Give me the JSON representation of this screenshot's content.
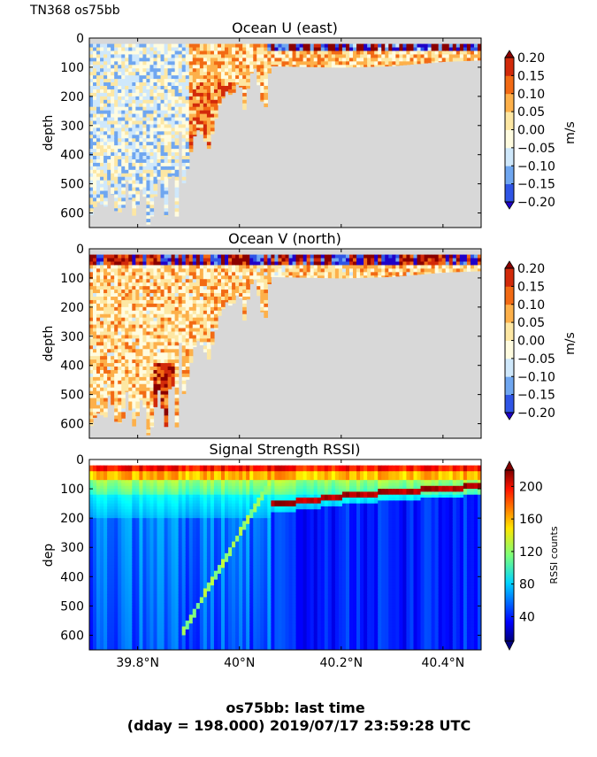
{
  "figure": {
    "corner_label": "TN368 os75bb",
    "footer_line1": "os75bb: last time",
    "footer_line2": "(dday = 198.000) 2019/07/17 23:59:28 UTC"
  },
  "colors": {
    "land_mask": "#d8d8d8",
    "velocity_levels": [
      "#1f00c8",
      "#2f55e6",
      "#6fa6f0",
      "#cfe8fb",
      "#fffce0",
      "#fde7a3",
      "#fdb04a",
      "#f26a14",
      "#d22a0a",
      "#8a0000"
    ],
    "rssi_colormap": "jet"
  },
  "chart_data": [
    {
      "type": "heatmap",
      "title": "Ocean U (east)",
      "ylabel": "depth",
      "xlabel": "",
      "x_unit": "degrees N latitude",
      "xlim": [
        39.705,
        40.475
      ],
      "ylim": [
        650,
        0
      ],
      "yticks": [
        0,
        100,
        200,
        300,
        400,
        500,
        600
      ],
      "xticks": [
        39.8,
        40.0,
        40.2,
        40.4
      ],
      "xtick_labels": [],
      "colorbar": {
        "label": "m/s",
        "levels": [
          -0.2,
          -0.15,
          -0.1,
          -0.05,
          0.0,
          0.05,
          0.1,
          0.15,
          0.2
        ],
        "tick_labels": [
          "−0.20",
          "−0.15",
          "−0.10",
          "−0.05",
          "0.00",
          "0.05",
          "0.10",
          "0.15",
          "0.20"
        ],
        "extend": "both"
      },
      "bottom_depth_profile": [
        [
          39.705,
          620
        ],
        [
          39.72,
          560
        ],
        [
          39.74,
          580
        ],
        [
          39.745,
          470
        ],
        [
          39.755,
          590
        ],
        [
          39.77,
          600
        ],
        [
          39.78,
          470
        ],
        [
          39.79,
          620
        ],
        [
          39.8,
          570
        ],
        [
          39.81,
          490
        ],
        [
          39.82,
          640
        ],
        [
          39.83,
          600
        ],
        [
          39.84,
          470
        ],
        [
          39.85,
          560
        ],
        [
          39.86,
          650
        ],
        [
          39.865,
          310
        ],
        [
          39.872,
          560
        ],
        [
          39.88,
          650
        ],
        [
          39.885,
          180
        ],
        [
          39.89,
          500
        ],
        [
          39.9,
          430
        ],
        [
          39.91,
          340
        ],
        [
          39.92,
          310
        ],
        [
          39.94,
          380
        ],
        [
          39.95,
          300
        ],
        [
          39.96,
          230
        ],
        [
          39.975,
          180
        ],
        [
          39.985,
          200
        ],
        [
          40.0,
          140
        ],
        [
          40.01,
          250
        ],
        [
          40.02,
          130
        ],
        [
          40.03,
          100
        ],
        [
          40.05,
          260
        ],
        [
          40.06,
          95
        ],
        [
          40.2,
          100
        ],
        [
          40.3,
          95
        ],
        [
          40.4,
          80
        ],
        [
          40.475,
          75
        ]
      ],
      "profile_note": "values are depth of deepest valid data per latitude"
    },
    {
      "type": "heatmap",
      "title": "Ocean V (north)",
      "ylabel": "depth",
      "xlabel": "",
      "x_unit": "degrees N latitude",
      "xlim": [
        39.705,
        40.475
      ],
      "ylim": [
        650,
        0
      ],
      "yticks": [
        0,
        100,
        200,
        300,
        400,
        500,
        600
      ],
      "xticks": [
        39.8,
        40.0,
        40.2,
        40.4
      ],
      "xtick_labels": [],
      "colorbar": {
        "label": "m/s",
        "levels": [
          -0.2,
          -0.15,
          -0.1,
          -0.05,
          0.0,
          0.05,
          0.1,
          0.15,
          0.2
        ],
        "tick_labels": [
          "−0.20",
          "−0.15",
          "−0.10",
          "−0.05",
          "0.00",
          "0.05",
          "0.10",
          "0.15",
          "0.20"
        ],
        "extend": "both"
      },
      "bottom_depth_profile": [
        [
          39.705,
          620
        ],
        [
          39.72,
          560
        ],
        [
          39.74,
          580
        ],
        [
          39.745,
          470
        ],
        [
          39.755,
          590
        ],
        [
          39.77,
          600
        ],
        [
          39.78,
          470
        ],
        [
          39.79,
          620
        ],
        [
          39.8,
          570
        ],
        [
          39.81,
          490
        ],
        [
          39.82,
          640
        ],
        [
          39.83,
          600
        ],
        [
          39.84,
          470
        ],
        [
          39.85,
          560
        ],
        [
          39.86,
          650
        ],
        [
          39.865,
          310
        ],
        [
          39.872,
          560
        ],
        [
          39.88,
          650
        ],
        [
          39.885,
          180
        ],
        [
          39.89,
          500
        ],
        [
          39.9,
          430
        ],
        [
          39.91,
          340
        ],
        [
          39.92,
          310
        ],
        [
          39.94,
          380
        ],
        [
          39.95,
          300
        ],
        [
          39.96,
          230
        ],
        [
          39.975,
          180
        ],
        [
          39.985,
          200
        ],
        [
          40.0,
          140
        ],
        [
          40.01,
          250
        ],
        [
          40.02,
          130
        ],
        [
          40.03,
          100
        ],
        [
          40.05,
          260
        ],
        [
          40.06,
          95
        ],
        [
          40.2,
          100
        ],
        [
          40.3,
          95
        ],
        [
          40.4,
          80
        ],
        [
          40.475,
          75
        ]
      ]
    },
    {
      "type": "heatmap",
      "title": "Signal Strength RSSI)",
      "ylabel": "dep",
      "xlabel": "",
      "x_unit": "degrees N latitude",
      "xlim": [
        39.705,
        40.475
      ],
      "ylim": [
        650,
        0
      ],
      "yticks": [
        0,
        100,
        200,
        300,
        400,
        500,
        600
      ],
      "xticks": [
        39.8,
        40.0,
        40.2,
        40.4
      ],
      "xtick_labels": [
        "39.8°N",
        "40°N",
        "40.2°N",
        "40.4°N"
      ],
      "colorbar": {
        "label": "RSSI counts",
        "range": [
          10,
          220
        ],
        "ticks": [
          40,
          80,
          120,
          160,
          200
        ],
        "tick_labels": [
          "40",
          "80",
          "120",
          "160",
          "200"
        ],
        "extend": "both"
      },
      "bottom_reflection_line": [
        [
          40.06,
          150
        ],
        [
          40.2,
          120
        ],
        [
          40.3,
          105
        ],
        [
          40.4,
          95
        ],
        [
          40.475,
          85
        ]
      ]
    }
  ]
}
